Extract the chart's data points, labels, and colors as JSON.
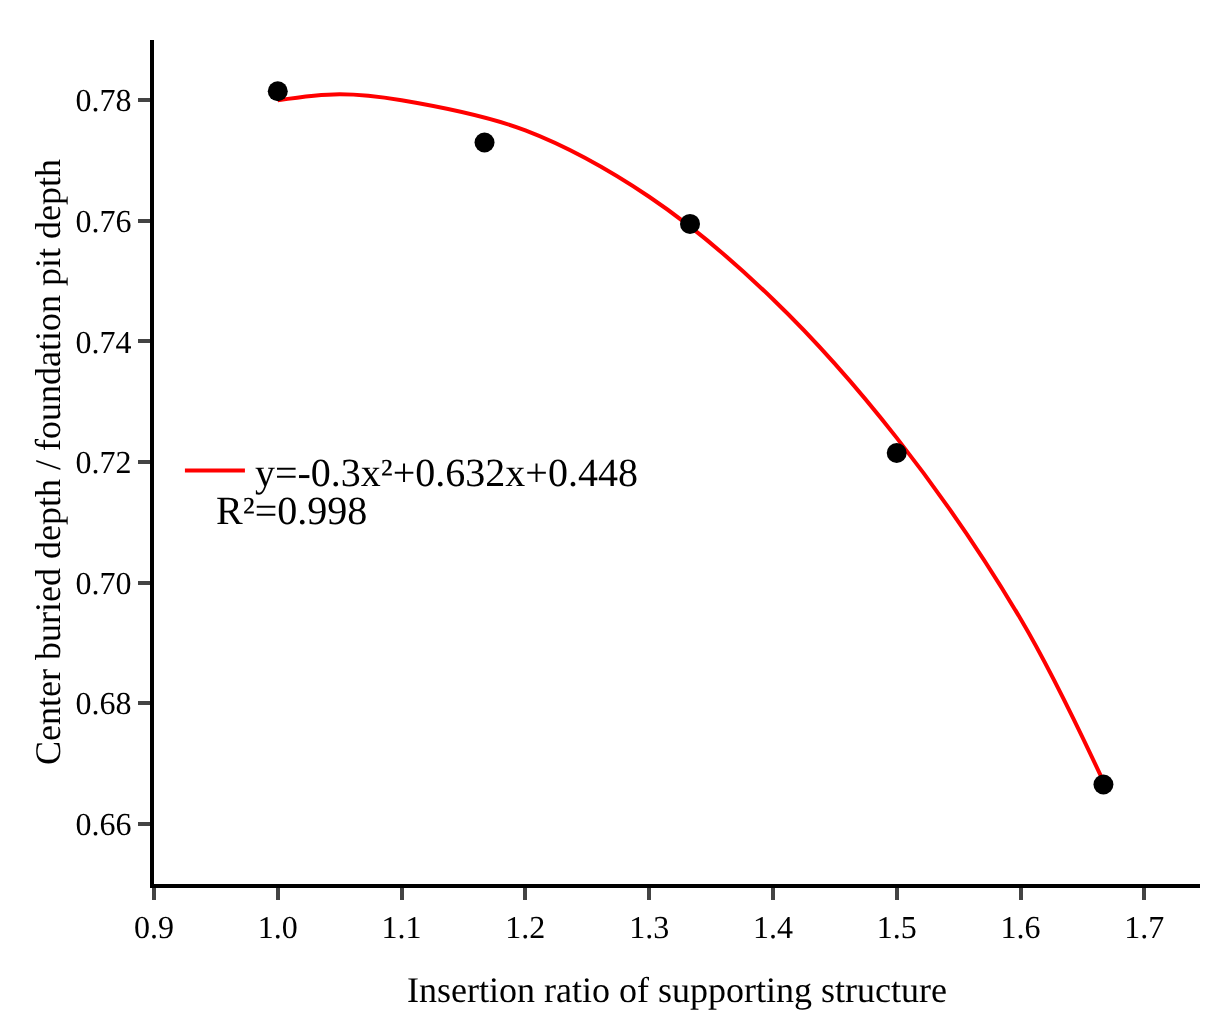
{
  "chart_data": {
    "type": "scatter",
    "xlabel": "Insertion ratio of supporting structure",
    "ylabel": "Center buried depth / foundation pit depth",
    "series": [
      {
        "color": "#000000",
        "x": [
          1.0,
          1.167,
          1.333,
          1.5,
          1.667
        ],
        "values": [
          0.7815,
          0.773,
          0.7595,
          0.7215,
          0.6665
        ]
      },
      {
        "type": "line",
        "name": "y=-0.3x²+0.632x+0.448",
        "color": "#ff0000",
        "x": [
          1.0,
          1.05,
          1.1,
          1.2,
          1.3,
          1.4,
          1.5,
          1.6,
          1.667
        ],
        "values": [
          0.78,
          0.781,
          0.78,
          0.775,
          0.764,
          0.747,
          0.724,
          0.694,
          0.667
        ],
        "marker": "none"
      }
    ],
    "annotations": [
      "R²=0.998"
    ],
    "marker": "circle",
    "legend": "left",
    "grid": false,
    "xlim": [
      0.9,
      1.745
    ],
    "ylim": [
      0.65,
      0.79
    ],
    "xticks": [
      0.9,
      {
        "value": 1.0,
        "label": "1.0"
      },
      1.1,
      1.2,
      1.3,
      1.4,
      1.5,
      1.6,
      1.7
    ],
    "yticks": [
      0.66,
      0.68,
      {
        "value": 0.7,
        "label": "0.70"
      },
      0.72,
      0.74,
      0.76,
      0.78
    ]
  }
}
